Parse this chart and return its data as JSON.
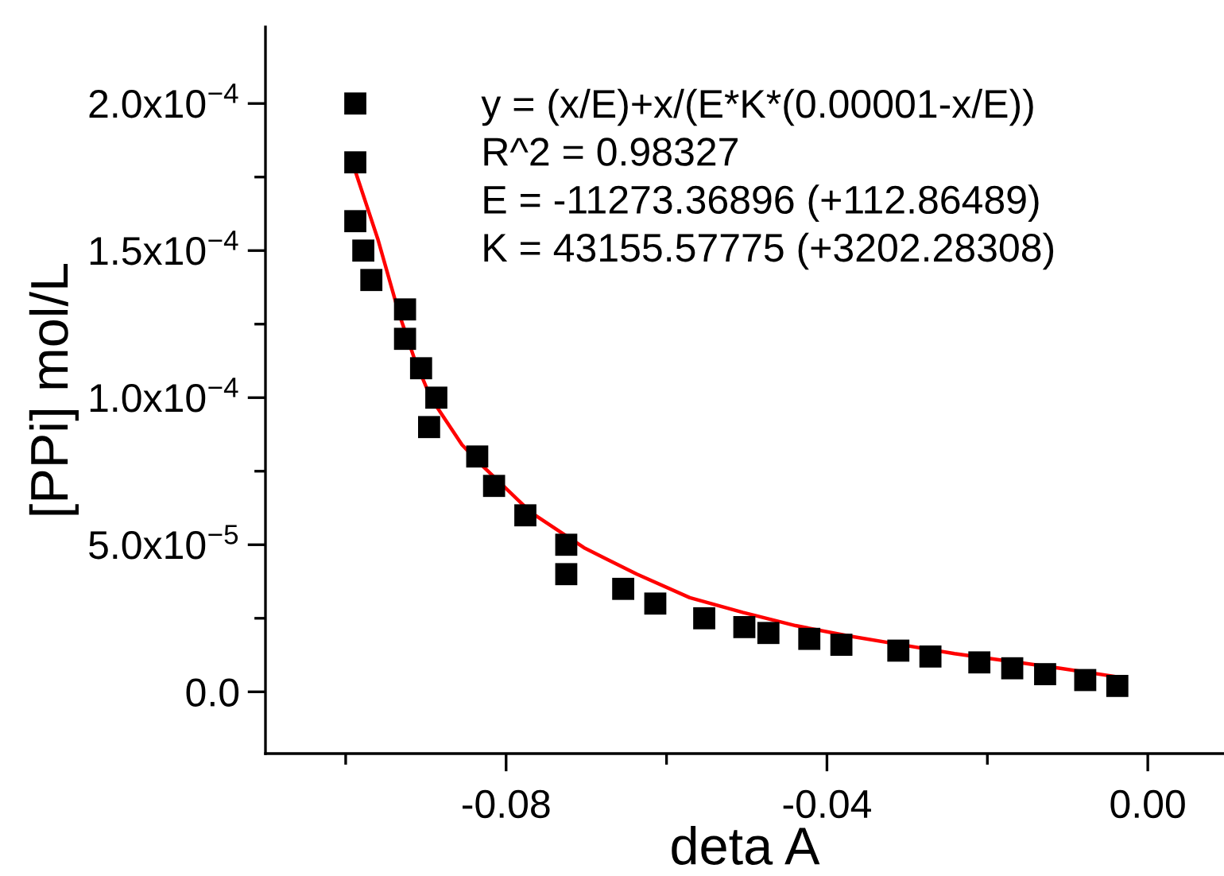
{
  "chart_data": {
    "type": "scatter",
    "xlabel": "deta A",
    "ylabel": "[PPi] mol/L",
    "annotations": [
      "y = (x/E)+x/(E*K*(0.00001-x/E))",
      "R^2 = 0.98327",
      "E = -11273.36896 (+112.86489)",
      "K = 43155.57775 (+3202.28308)"
    ],
    "series": [
      {
        "color": "#000000",
        "marker": "square",
        "x": [
          -0.0988,
          -0.0988,
          -0.0988,
          -0.0978,
          -0.0968,
          -0.0926,
          -0.0926,
          -0.0906,
          -0.0887,
          -0.0896,
          -0.0836,
          -0.0815,
          -0.0776,
          -0.0725,
          -0.0725,
          -0.0654,
          -0.0614,
          -0.0553,
          -0.0503,
          -0.0473,
          -0.0422,
          -0.0382,
          -0.0311,
          -0.0271,
          -0.021,
          -0.0169,
          -0.0128,
          -0.0078,
          -0.0038
        ],
        "values": [
          0.0002,
          0.00018,
          0.00016,
          0.00015,
          0.00014,
          0.00013,
          0.00012,
          0.00011,
          0.0001,
          9e-05,
          8e-05,
          7e-05,
          6e-05,
          5e-05,
          4e-05,
          3.5e-05,
          3e-05,
          2.5e-05,
          2.2e-05,
          2e-05,
          1.8e-05,
          1.6e-05,
          1.4e-05,
          1.2e-05,
          1e-05,
          8e-06,
          6e-06,
          4e-06,
          2e-06
        ]
      },
      {
        "type": "line",
        "color": "#ff0000",
        "marker": "none",
        "line_style": "solid",
        "x": [
          -0.0988,
          -0.096,
          -0.0934,
          -0.0914,
          -0.0894,
          -0.0855,
          -0.0834,
          -0.0769,
          -0.0703,
          -0.0637,
          -0.0571,
          -0.0505,
          -0.0439,
          -0.0373,
          -0.0307,
          -0.0241,
          -0.0175,
          -0.0109,
          -0.0036
        ],
        "values": [
          0.000177,
          0.000154,
          0.000129,
          0.000113,
          0.0001,
          8.4e-05,
          7.8e-05,
          6.1e-05,
          4.9e-05,
          4e-05,
          3.2e-05,
          2.7e-05,
          2.25e-05,
          1.9e-05,
          1.6e-05,
          1.3e-05,
          1.05e-05,
          8e-06,
          5e-06
        ]
      }
    ],
    "xlim": [
      -0.11,
      0.0095
    ],
    "ylim": [
      -2.1e-05,
      0.000226
    ],
    "xticks": [
      {
        "value": -0.1,
        "label": null
      },
      {
        "value": -0.08,
        "label": "-0.08"
      },
      {
        "value": -0.06,
        "label": null
      },
      {
        "value": -0.04,
        "label": "-0.04"
      },
      {
        "value": -0.02,
        "label": null
      },
      {
        "value": 0.0,
        "label": "0.00"
      }
    ],
    "yticks": [
      {
        "value": 0.0,
        "label": "0.0"
      },
      {
        "value": 2.5e-05,
        "label": null
      },
      {
        "value": 5e-05,
        "label": "5.0x10$^{−5}$"
      },
      {
        "value": 7.5e-05,
        "label": null
      },
      {
        "value": 0.0001,
        "label": "1.0x10$^{−4}$"
      },
      {
        "value": 0.000125,
        "label": null
      },
      {
        "value": 0.00015,
        "label": "1.5x10$^{−4}$"
      },
      {
        "value": 0.000175,
        "label": null
      },
      {
        "value": 0.0002,
        "label": "2.0x10$^{−4}$"
      }
    ],
    "grid": false,
    "legend": false
  }
}
